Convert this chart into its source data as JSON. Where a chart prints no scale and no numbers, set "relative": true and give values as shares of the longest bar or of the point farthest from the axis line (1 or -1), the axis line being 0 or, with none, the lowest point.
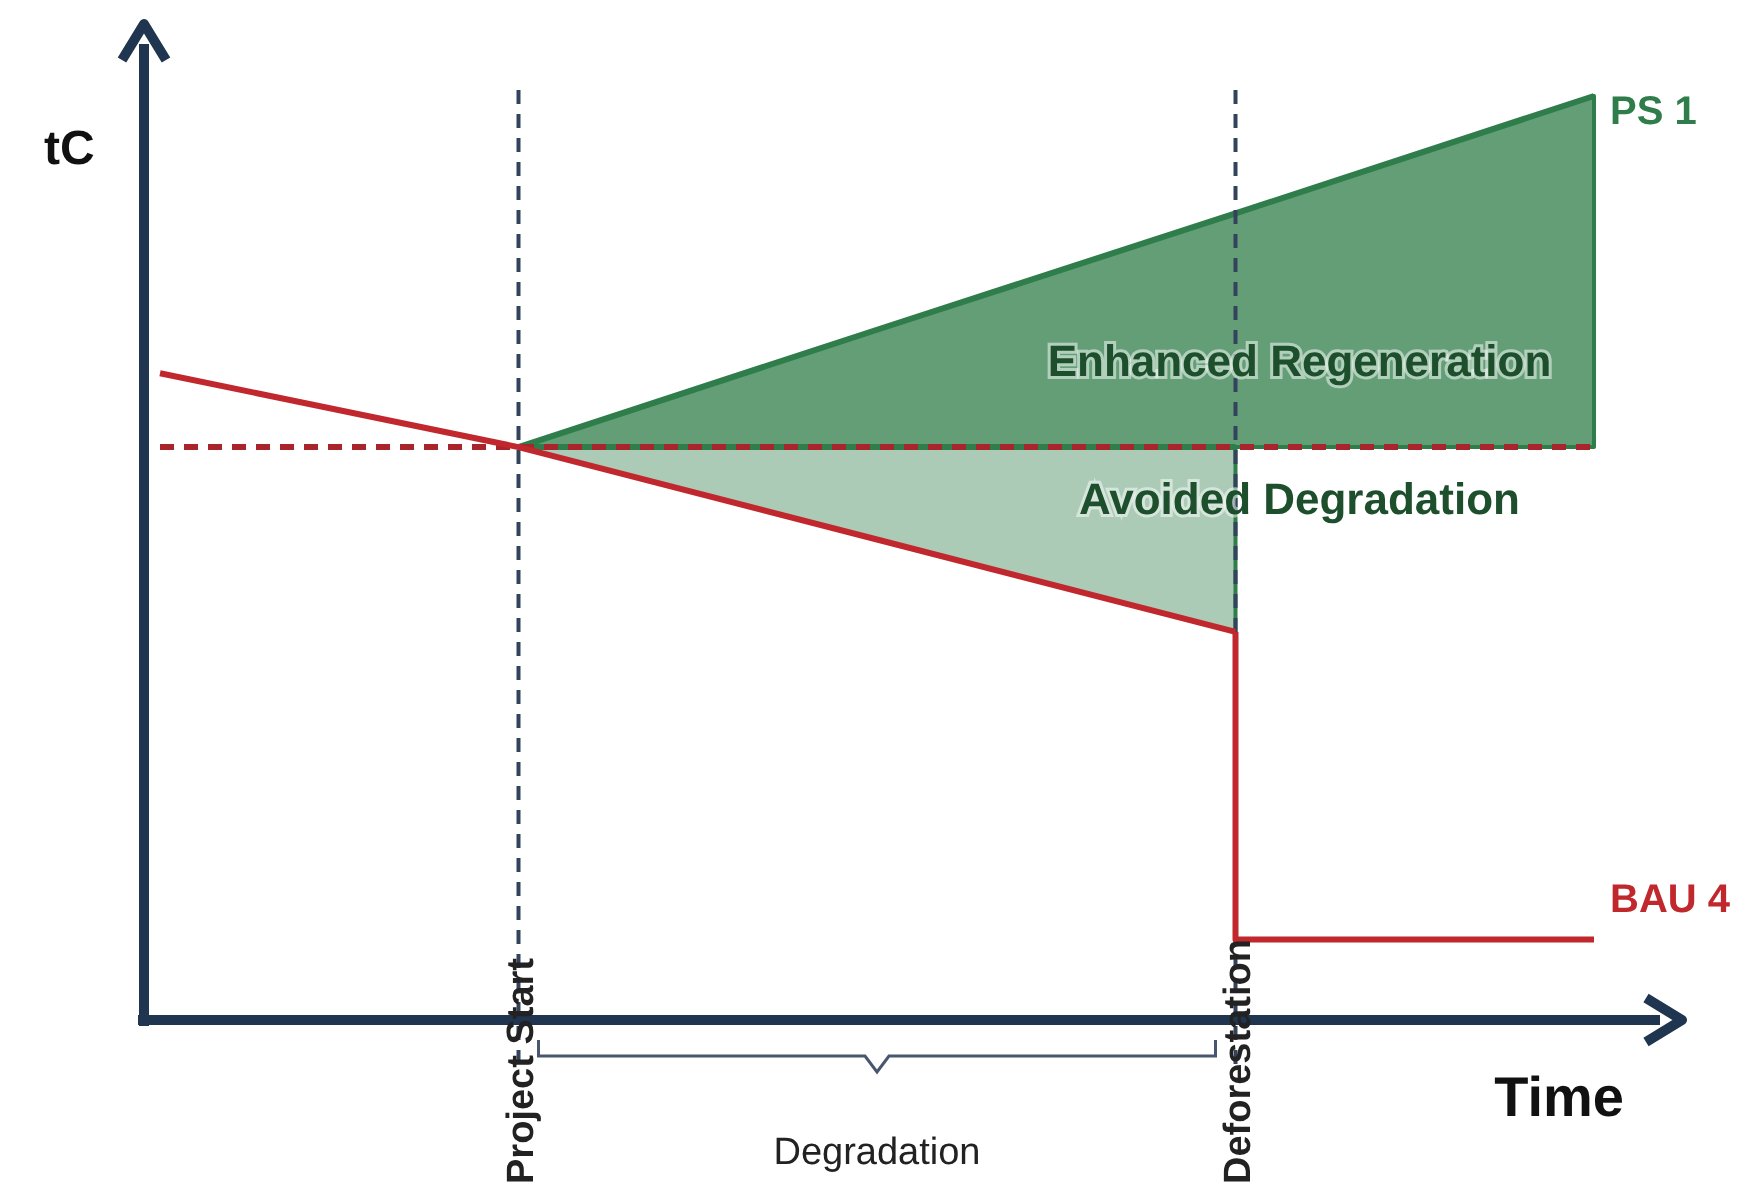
{
  "chart_data": {
    "type": "line",
    "relative": true,
    "xlabel": "Time",
    "ylabel": "tC",
    "categories": [
      null,
      "Project Start",
      null,
      "Deforestation",
      null
    ],
    "series": [
      {
        "type": "line",
        "name": "PS 1",
        "color": "#2f7d4a",
        "values": [
          null,
          0.62,
          0.747,
          0.873,
          1.0
        ],
        "lower": [
          null,
          0.62,
          0.62,
          0.62,
          0.62
        ],
        "upper": [
          null,
          0.62,
          0.747,
          0.873,
          1.0
        ]
      },
      {
        "type": "line",
        "color": "#2f7d4a",
        "values": [
          null,
          0.62,
          0.62,
          0.62,
          null
        ],
        "lower": [
          null,
          0.62,
          0.52,
          0.42,
          null
        ],
        "upper": [
          null,
          0.62,
          0.62,
          0.62,
          null
        ]
      },
      {
        "color": "#c0282d",
        "values": [
          0.7,
          0.62,
          0.52,
          0.42,
          null
        ]
      },
      {
        "type": "step",
        "name": "BAU 4",
        "color": "#c0282d",
        "values": [
          null,
          null,
          null,
          0.42,
          0.087
        ]
      }
    ],
    "ref_lines": [
      {
        "axis": "y",
        "value": 0.62,
        "color": "#a8262b",
        "line_style": "dashed"
      },
      {
        "axis": "x",
        "value": "Project Start",
        "color": "#34435c",
        "line_style": "dashed"
      },
      {
        "axis": "x",
        "value": "Deforestation",
        "color": "#34435c",
        "line_style": "dashed"
      }
    ],
    "annotations": [
      "Degradation",
      {
        "text": "Enhanced Regeneration",
        "x": "Deforestation",
        "y": 0.71
      },
      {
        "text": "Avoided Degradation",
        "x": "Deforestation",
        "y": 0.56
      }
    ],
    "legend": false
  }
}
